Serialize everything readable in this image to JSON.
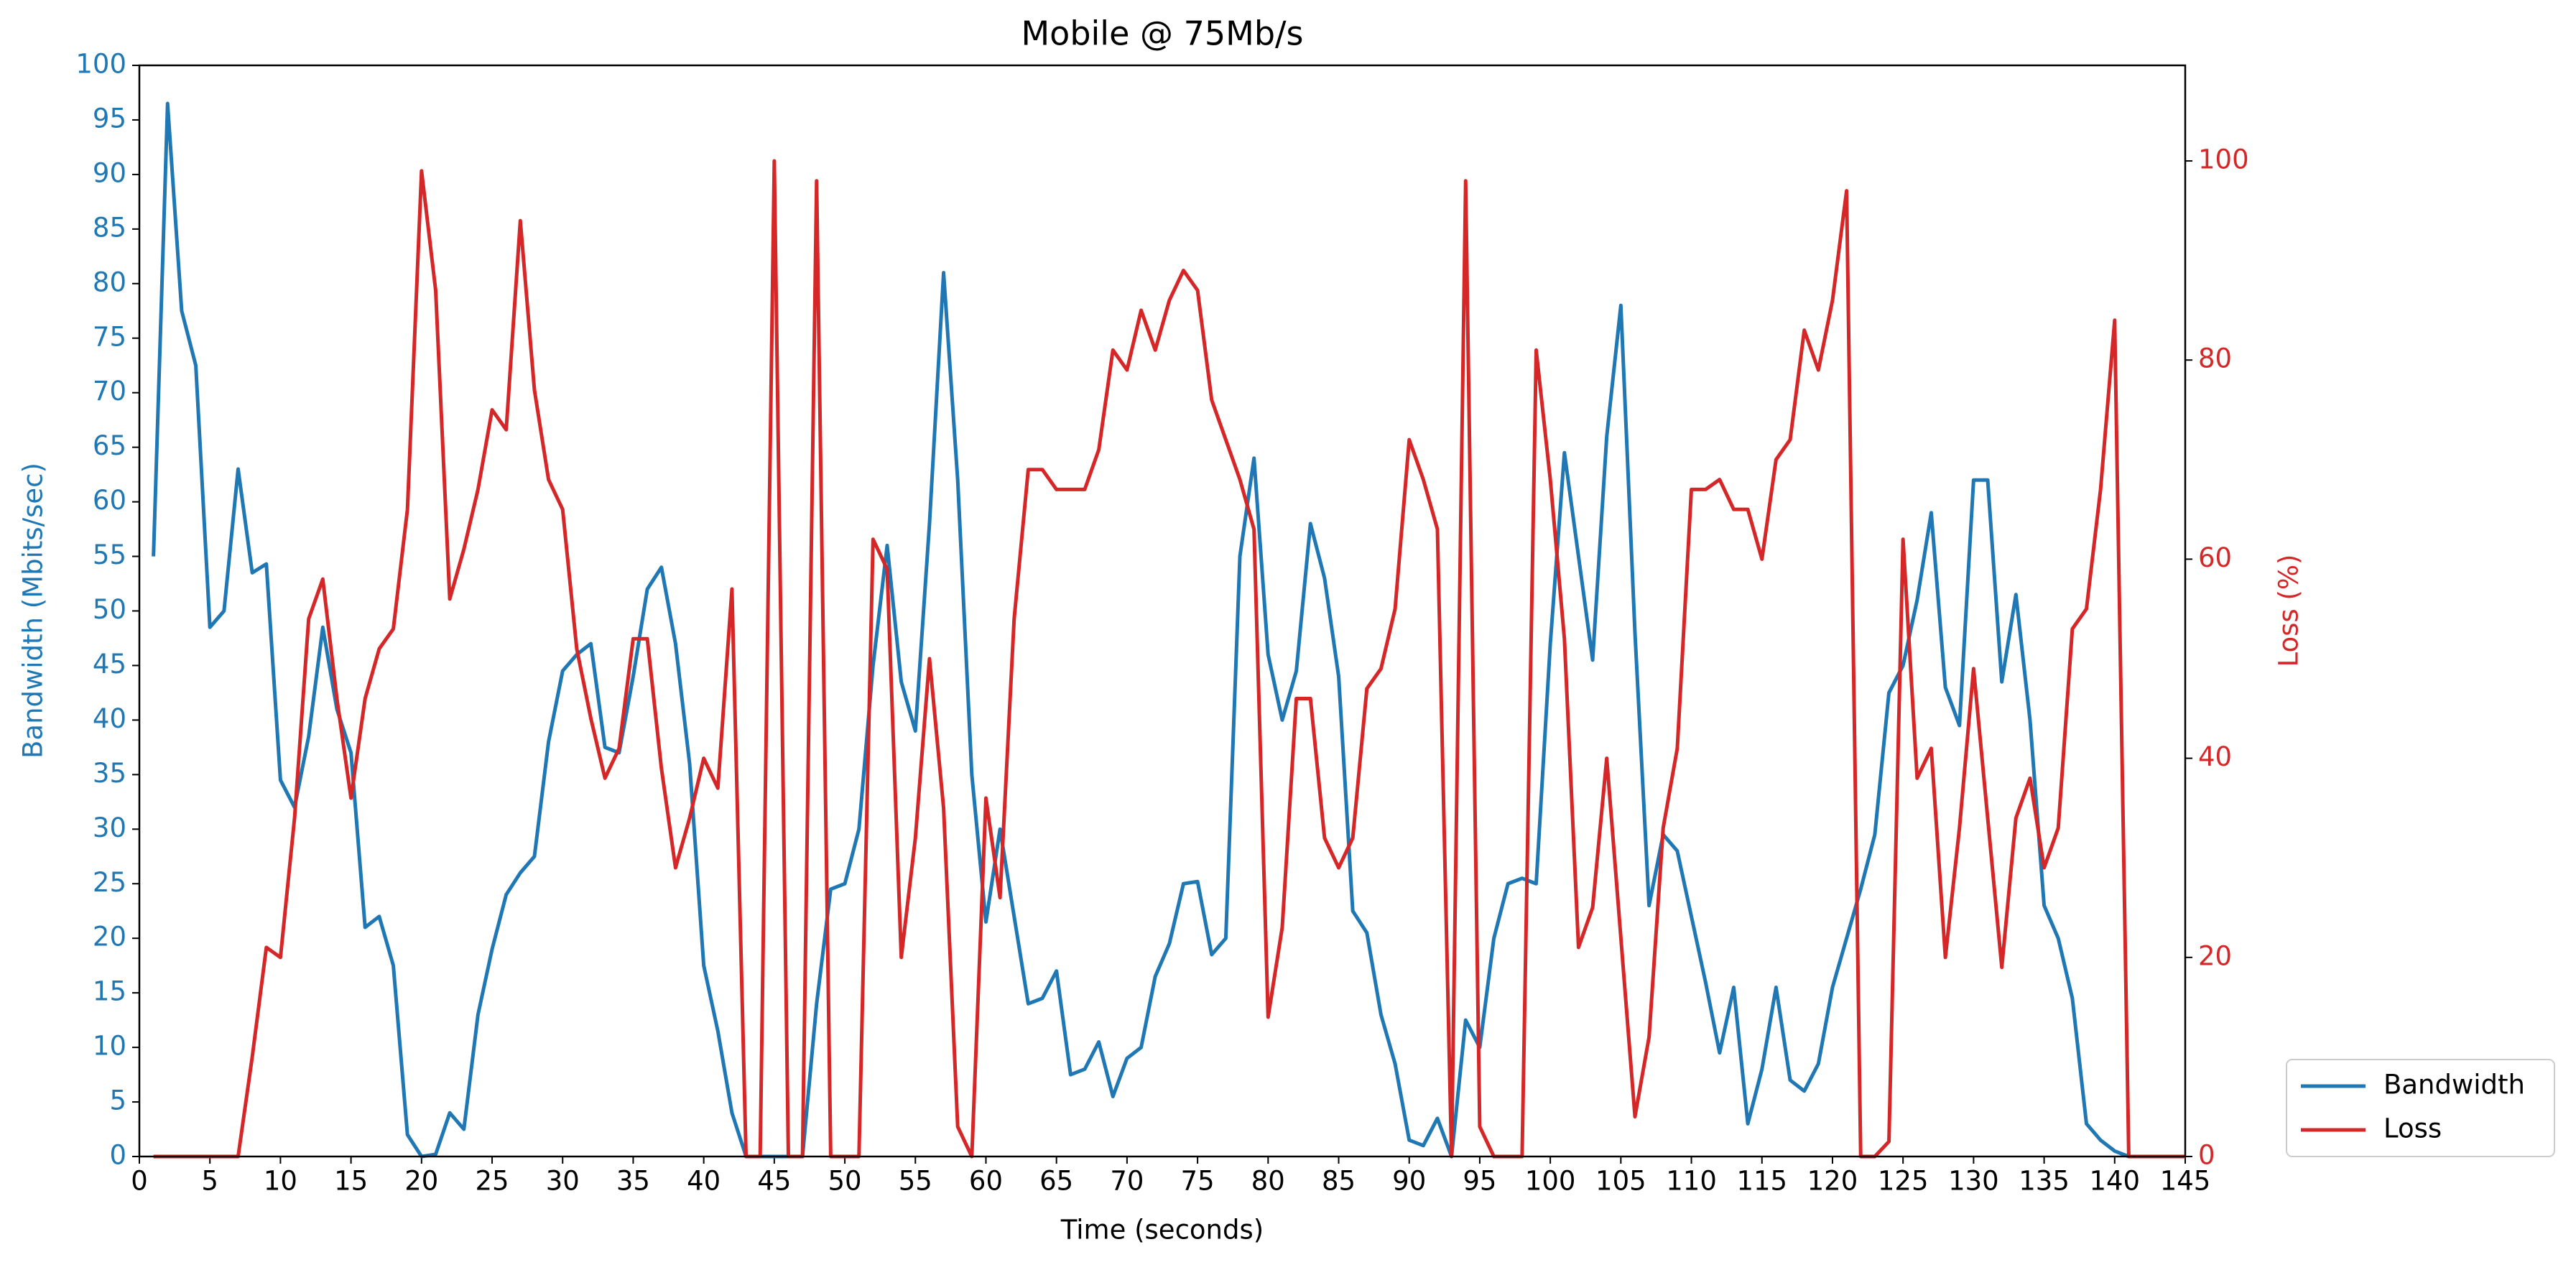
{
  "chart_data": {
    "type": "line",
    "title": "Mobile @ 75Mb/s",
    "x_label": "Time (seconds)",
    "y_label": "Bandwidth (Mbits/sec)",
    "y2_label": "Loss (%)",
    "x": [
      1,
      2,
      3,
      4,
      5,
      6,
      7,
      8,
      9,
      10,
      11,
      12,
      13,
      14,
      15,
      16,
      17,
      18,
      19,
      20,
      21,
      22,
      23,
      24,
      25,
      26,
      27,
      28,
      29,
      30,
      31,
      32,
      33,
      34,
      35,
      36,
      37,
      38,
      39,
      40,
      41,
      42,
      43,
      44,
      45,
      46,
      47,
      48,
      49,
      50,
      51,
      52,
      53,
      54,
      55,
      56,
      57,
      58,
      59,
      60,
      61,
      62,
      63,
      64,
      65,
      66,
      67,
      68,
      69,
      70,
      71,
      72,
      73,
      74,
      75,
      76,
      77,
      78,
      79,
      80,
      81,
      82,
      83,
      84,
      85,
      86,
      87,
      88,
      89,
      90,
      91,
      92,
      93,
      94,
      95,
      96,
      97,
      98,
      99,
      100,
      101,
      102,
      103,
      104,
      105,
      106,
      107,
      108,
      109,
      110,
      111,
      112,
      113,
      114,
      115,
      116,
      117,
      118,
      119,
      120,
      121,
      122,
      123,
      124,
      125,
      126,
      127,
      128,
      129,
      130,
      131,
      132,
      133,
      134,
      135,
      136,
      137,
      138,
      139,
      140,
      141,
      142,
      143,
      144,
      145
    ],
    "series": [
      {
        "name": "Bandwidth",
        "color": "#1f77b4",
        "values": [
          55,
          96.5,
          77.5,
          72.5,
          48.5,
          50,
          63,
          53.5,
          54.3,
          34.5,
          32,
          38.5,
          48.5,
          41,
          37,
          21,
          22,
          17.5,
          2,
          0,
          0.2,
          4,
          2.5,
          13,
          19,
          24,
          26,
          27.5,
          38,
          44.5,
          46,
          47,
          37.5,
          37,
          44,
          52,
          54,
          47,
          36,
          17.5,
          11.5,
          4,
          0,
          0,
          0,
          0,
          0,
          14,
          24.5,
          25,
          30,
          45,
          56,
          43.5,
          39,
          58,
          81,
          62,
          35,
          21.5,
          30,
          22,
          14,
          14.5,
          17,
          7.5,
          8,
          10.5,
          5.5,
          9,
          10,
          16.5,
          19.5,
          25,
          25.2,
          18.5,
          20,
          55,
          64,
          46,
          40,
          44.5,
          58,
          53,
          44,
          22.5,
          20.5,
          13,
          8.5,
          1.5,
          1,
          3.5,
          0,
          12.5,
          10,
          20,
          25,
          25.5,
          25,
          47,
          64.5,
          55,
          45.5,
          66,
          78,
          48,
          23,
          29.5,
          28,
          22,
          16,
          9.5,
          15.5,
          3,
          8,
          15.5,
          7,
          6,
          8.5,
          15.5,
          20,
          24.5,
          29.5,
          42.5,
          45,
          51,
          59,
          43,
          39.5,
          62,
          62,
          43.5,
          51.5,
          40,
          23,
          20,
          14.5,
          3,
          1.5,
          0.5,
          0,
          0,
          0,
          0,
          0
        ]
      },
      {
        "name": "Loss",
        "color": "#d62728",
        "axis": "y2",
        "values": [
          0,
          0,
          0,
          0,
          0,
          0,
          0,
          10,
          21,
          20,
          34,
          54,
          58,
          46,
          36,
          46,
          51,
          53,
          65,
          99,
          87,
          56,
          61,
          67,
          75,
          73,
          94,
          77,
          68,
          65,
          51,
          44,
          38,
          41,
          52,
          52,
          39,
          29,
          34,
          40,
          37,
          57,
          0,
          0,
          100,
          0,
          0,
          98,
          0,
          0,
          0,
          62,
          59,
          20,
          32,
          50,
          35,
          3,
          0,
          36,
          26,
          54,
          69,
          69,
          67,
          67,
          67,
          71,
          81,
          79,
          85,
          81,
          86,
          89,
          87,
          76,
          72,
          68,
          63,
          14,
          23,
          46,
          46,
          32,
          29,
          32,
          47,
          49,
          55,
          72,
          68,
          63,
          0,
          98,
          3,
          0,
          0,
          0,
          81,
          68,
          52,
          21,
          25,
          40,
          22,
          4,
          12,
          33,
          41,
          67,
          67,
          68,
          65,
          65,
          60,
          70,
          72,
          83,
          79,
          86,
          97,
          0,
          0,
          1.5,
          62,
          38,
          41,
          20,
          33,
          49,
          34,
          19,
          34,
          38,
          29,
          33,
          53,
          55,
          67,
          84,
          0,
          0,
          0,
          0,
          0
        ]
      }
    ],
    "xlim": [
      0,
      145
    ],
    "xticks": [
      0,
      5,
      10,
      15,
      20,
      25,
      30,
      35,
      40,
      45,
      50,
      55,
      60,
      65,
      70,
      75,
      80,
      85,
      90,
      95,
      100,
      105,
      110,
      115,
      120,
      125,
      130,
      135,
      140,
      145
    ],
    "ylim": [
      0,
      100
    ],
    "yticks": [
      0,
      5,
      10,
      15,
      20,
      25,
      30,
      35,
      40,
      45,
      50,
      55,
      60,
      65,
      70,
      75,
      80,
      85,
      90,
      95,
      100
    ],
    "y2lim": [
      0,
      109.6
    ],
    "y2ticks": [
      0,
      20,
      40,
      60,
      80,
      100
    ],
    "legend": "lower right outside"
  }
}
